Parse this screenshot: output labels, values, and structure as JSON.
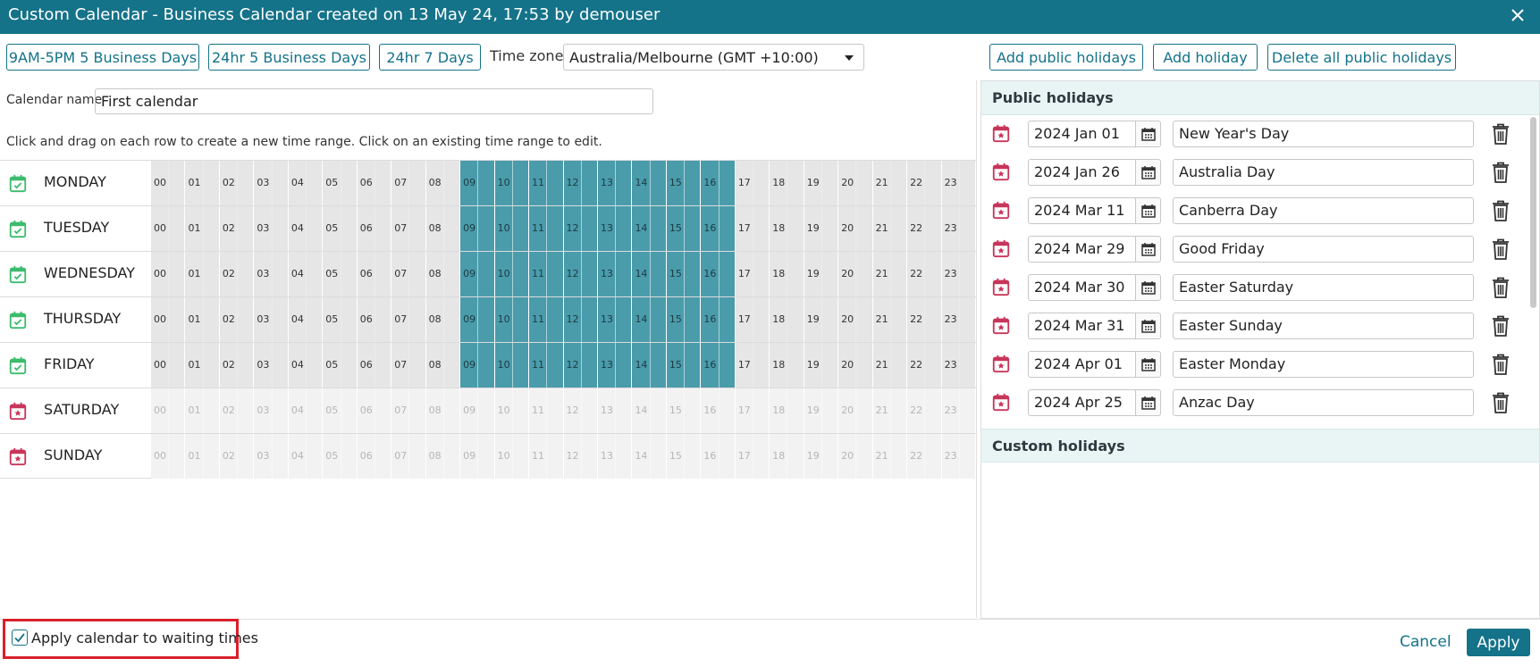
{
  "window": {
    "title": "Custom Calendar - Business Calendar created on 13 May 24, 17:53 by demouser"
  },
  "toolbar": {
    "preset_9to5": "9AM-5PM 5 Business Days",
    "preset_24x5": "24hr 5 Business Days",
    "preset_24x7": "24hr 7 Days",
    "timezone_label": "Time zone",
    "timezone_value": "Australia/Melbourne (GMT +10:00)",
    "add_public_holidays": "Add public holidays",
    "add_holiday": "Add holiday",
    "delete_all_public_holidays": "Delete all public holidays"
  },
  "calendar_name": {
    "label": "Calendar name",
    "value": "First calendar"
  },
  "instructions": "Click and drag on each row to create a new time range. Click on an existing time range to edit.",
  "hour_labels": [
    "00",
    "01",
    "02",
    "03",
    "04",
    "05",
    "06",
    "07",
    "08",
    "09",
    "10",
    "11",
    "12",
    "13",
    "14",
    "15",
    "16",
    "17",
    "18",
    "19",
    "20",
    "21",
    "22",
    "23"
  ],
  "days": [
    {
      "label": "MONDAY",
      "icon": "calendar-check-icon",
      "enabled": true,
      "active_hours": [
        9,
        10,
        11,
        12,
        13,
        14,
        15,
        16
      ]
    },
    {
      "label": "TUESDAY",
      "icon": "calendar-check-icon",
      "enabled": true,
      "active_hours": [
        9,
        10,
        11,
        12,
        13,
        14,
        15,
        16
      ]
    },
    {
      "label": "WEDNESDAY",
      "icon": "calendar-check-icon",
      "enabled": true,
      "active_hours": [
        9,
        10,
        11,
        12,
        13,
        14,
        15,
        16
      ]
    },
    {
      "label": "THURSDAY",
      "icon": "calendar-check-icon",
      "enabled": true,
      "active_hours": [
        9,
        10,
        11,
        12,
        13,
        14,
        15,
        16
      ]
    },
    {
      "label": "FRIDAY",
      "icon": "calendar-check-icon",
      "enabled": true,
      "active_hours": [
        9,
        10,
        11,
        12,
        13,
        14,
        15,
        16
      ]
    },
    {
      "label": "SATURDAY",
      "icon": "calendar-star-icon",
      "enabled": false,
      "active_hours": []
    },
    {
      "label": "SUNDAY",
      "icon": "calendar-star-icon",
      "enabled": false,
      "active_hours": []
    }
  ],
  "public_holidays": {
    "title": "Public holidays",
    "items": [
      {
        "date": "2024 Jan 01",
        "name": "New Year's Day"
      },
      {
        "date": "2024 Jan 26",
        "name": "Australia Day"
      },
      {
        "date": "2024 Mar 11",
        "name": "Canberra Day"
      },
      {
        "date": "2024 Mar 29",
        "name": "Good Friday"
      },
      {
        "date": "2024 Mar 30",
        "name": "Easter Saturday"
      },
      {
        "date": "2024 Mar 31",
        "name": "Easter Sunday"
      },
      {
        "date": "2024 Apr 01",
        "name": "Easter Monday"
      },
      {
        "date": "2024 Apr 25",
        "name": "Anzac Day"
      }
    ]
  },
  "custom_holidays": {
    "title": "Custom holidays",
    "items": []
  },
  "footer": {
    "apply_waiting_label": "Apply calendar to waiting times",
    "apply_waiting_checked": true,
    "cancel": "Cancel",
    "apply": "Apply"
  },
  "colors": {
    "accent": "#147289",
    "active_hour": "#4a9cab",
    "weekday_icon": "#3dbb6e",
    "weekend_icon": "#c8355a",
    "highlight_box": "#d9202a"
  }
}
